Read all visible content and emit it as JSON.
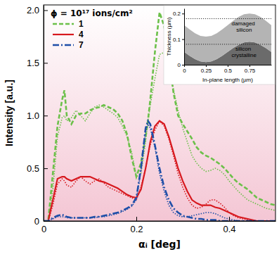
{
  "chart_data": [
    {
      "type": "line",
      "x_label": "αᵢ [deg]",
      "y_label": "Intensity [a.u.]",
      "legend_title": "ϕ = 10¹⁷ ions/cm²",
      "legend": "upper left",
      "xlim": [
        0,
        0.5
      ],
      "xticks": [
        0,
        0.2,
        0.4
      ],
      "ylim": [
        0,
        2.05
      ],
      "yticks": [
        0,
        0.5,
        {
          "value": 1,
          "label": "1.0"
        },
        1.5,
        {
          "value": 2,
          "label": "2.0"
        }
      ],
      "x": [
        0,
        0.01,
        0.02,
        0.03,
        0.04,
        0.045,
        0.05,
        0.06,
        0.07,
        0.08,
        0.09,
        0.1,
        0.11,
        0.12,
        0.13,
        0.14,
        0.15,
        0.16,
        0.17,
        0.18,
        0.19,
        0.2,
        0.21,
        0.22,
        0.225,
        0.23,
        0.24,
        0.25,
        0.26,
        0.27,
        0.28,
        0.29,
        0.3,
        0.31,
        0.32,
        0.33,
        0.34,
        0.35,
        0.36,
        0.37,
        0.38,
        0.39,
        0.4,
        0.41,
        0.42,
        0.43,
        0.44,
        0.45,
        0.46,
        0.47,
        0.48,
        0.49,
        0.5
      ],
      "series": [
        {
          "name": "1",
          "color": "#6cc04a",
          "line_style": "dashed",
          "values": [
            0,
            0,
            0.45,
            0.9,
            1.15,
            1.24,
            1.0,
            0.92,
            1.0,
            1.02,
            1.02,
            1.05,
            1.07,
            1.08,
            1.1,
            1.08,
            1.06,
            1.02,
            0.95,
            0.82,
            0.6,
            0.42,
            0.55,
            0.8,
            0.95,
            1.15,
            1.6,
            1.98,
            1.85,
            1.55,
            1.22,
            1.0,
            0.92,
            0.85,
            0.78,
            0.7,
            0.65,
            0.62,
            0.6,
            0.57,
            0.54,
            0.5,
            0.45,
            0.4,
            0.36,
            0.33,
            0.3,
            0.26,
            0.22,
            0.2,
            0.18,
            0.16,
            0.15
          ],
          "fit": [
            0,
            0,
            0.3,
            0.8,
            0.98,
            1.0,
            0.95,
            0.98,
            1.05,
            1.0,
            0.95,
            1.02,
            1.08,
            1.1,
            1.08,
            1.05,
            1.02,
            0.98,
            0.9,
            0.8,
            0.65,
            0.42,
            0.45,
            0.75,
            0.95,
            1.1,
            1.35,
            1.58,
            1.6,
            1.45,
            1.25,
            1.05,
            0.88,
            0.75,
            0.62,
            0.55,
            0.5,
            0.47,
            0.48,
            0.5,
            0.48,
            0.44,
            0.38,
            0.33,
            0.28,
            0.24,
            0.2,
            0.18,
            0.16,
            0.14,
            0.12,
            0.11,
            0.1
          ]
        },
        {
          "name": "4",
          "color": "#d7191f",
          "line_style": "solid",
          "values": [
            0,
            0,
            0.2,
            0.4,
            0.42,
            0.42,
            0.4,
            0.38,
            0.4,
            0.42,
            0.42,
            0.42,
            0.4,
            0.38,
            0.37,
            0.35,
            0.33,
            0.31,
            0.28,
            0.25,
            0.23,
            0.22,
            0.3,
            0.5,
            0.62,
            0.75,
            0.9,
            0.95,
            0.92,
            0.8,
            0.65,
            0.5,
            0.38,
            0.28,
            0.2,
            0.17,
            0.15,
            0.15,
            0.15,
            0.13,
            0.12,
            0.1,
            0.08,
            0.06,
            0.04,
            0.03,
            0.02,
            0.01,
            0,
            0,
            0,
            0,
            0
          ],
          "fit": [
            0,
            0,
            0.15,
            0.35,
            0.4,
            0.38,
            0.34,
            0.32,
            0.38,
            0.42,
            0.38,
            0.35,
            0.38,
            0.4,
            0.36,
            0.32,
            0.3,
            0.28,
            0.26,
            0.24,
            0.22,
            0.2,
            0.32,
            0.5,
            0.62,
            0.72,
            0.86,
            0.95,
            0.9,
            0.78,
            0.62,
            0.45,
            0.32,
            0.22,
            0.15,
            0.12,
            0.13,
            0.16,
            0.2,
            0.2,
            0.17,
            0.13,
            0.08,
            0.05,
            0.03,
            0.02,
            0.01,
            0,
            0,
            0,
            0,
            0,
            0
          ]
        },
        {
          "name": "7",
          "color": "#1f4fa8",
          "line_style": "dashdot",
          "values": [
            0,
            0,
            0.03,
            0.05,
            0.06,
            0.05,
            0.04,
            0.03,
            0.03,
            0.03,
            0.03,
            0.03,
            0.04,
            0.04,
            0.05,
            0.06,
            0.07,
            0.08,
            0.1,
            0.12,
            0.15,
            0.22,
            0.5,
            0.88,
            0.95,
            0.92,
            0.72,
            0.5,
            0.32,
            0.2,
            0.12,
            0.08,
            0.05,
            0.04,
            0.03,
            0.02,
            0.02,
            0.01,
            0.01,
            0.01,
            0,
            0,
            0,
            0,
            0,
            0,
            0,
            0,
            0,
            0,
            0,
            0,
            0
          ],
          "fit": [
            0,
            0,
            0.02,
            0.04,
            0.04,
            0.04,
            0.03,
            0.03,
            0.03,
            0.03,
            0.03,
            0.03,
            0.03,
            0.04,
            0.04,
            0.05,
            0.06,
            0.07,
            0.09,
            0.11,
            0.14,
            0.2,
            0.48,
            0.85,
            0.92,
            0.88,
            0.7,
            0.45,
            0.28,
            0.15,
            0.08,
            0.05,
            0.04,
            0.04,
            0.05,
            0.06,
            0.07,
            0.08,
            0.08,
            0.07,
            0.05,
            0.03,
            0.02,
            0.01,
            0,
            0,
            0,
            0,
            0,
            0,
            0,
            0,
            0
          ]
        }
      ]
    },
    {
      "type": "area",
      "stacked": true,
      "x_label": "In-plane length (µm)",
      "y_label": "Thickness (µm)",
      "xlim": [
        0,
        1
      ],
      "xticks": [
        0,
        0.25,
        0.5,
        0.75
      ],
      "ylim": [
        0,
        0.22
      ],
      "yticks": [
        0,
        0.1,
        0.2
      ],
      "reference_lines": [
        0.08,
        0.18
      ],
      "x": [
        0,
        0.0625,
        0.125,
        0.1875,
        0.25,
        0.3125,
        0.375,
        0.4375,
        0.5,
        0.5625,
        0.625,
        0.6875,
        0.75,
        0.8125,
        0.875,
        0.9375,
        1
      ],
      "series": [
        {
          "name": "silicon crystalline",
          "color": "#6b6b6b",
          "values": [
            0.05,
            0.035,
            0.022,
            0.013,
            0.01,
            0.013,
            0.022,
            0.035,
            0.05,
            0.065,
            0.078,
            0.087,
            0.09,
            0.087,
            0.078,
            0.065,
            0.05
          ]
        },
        {
          "name": "damaged silicon",
          "color": "#b4b4b4",
          "values": [
            0.105,
            0.103,
            0.101,
            0.1,
            0.1,
            0.1,
            0.101,
            0.103,
            0.105,
            0.107,
            0.109,
            0.11,
            0.11,
            0.11,
            0.109,
            0.107,
            0.105
          ]
        }
      ]
    }
  ]
}
